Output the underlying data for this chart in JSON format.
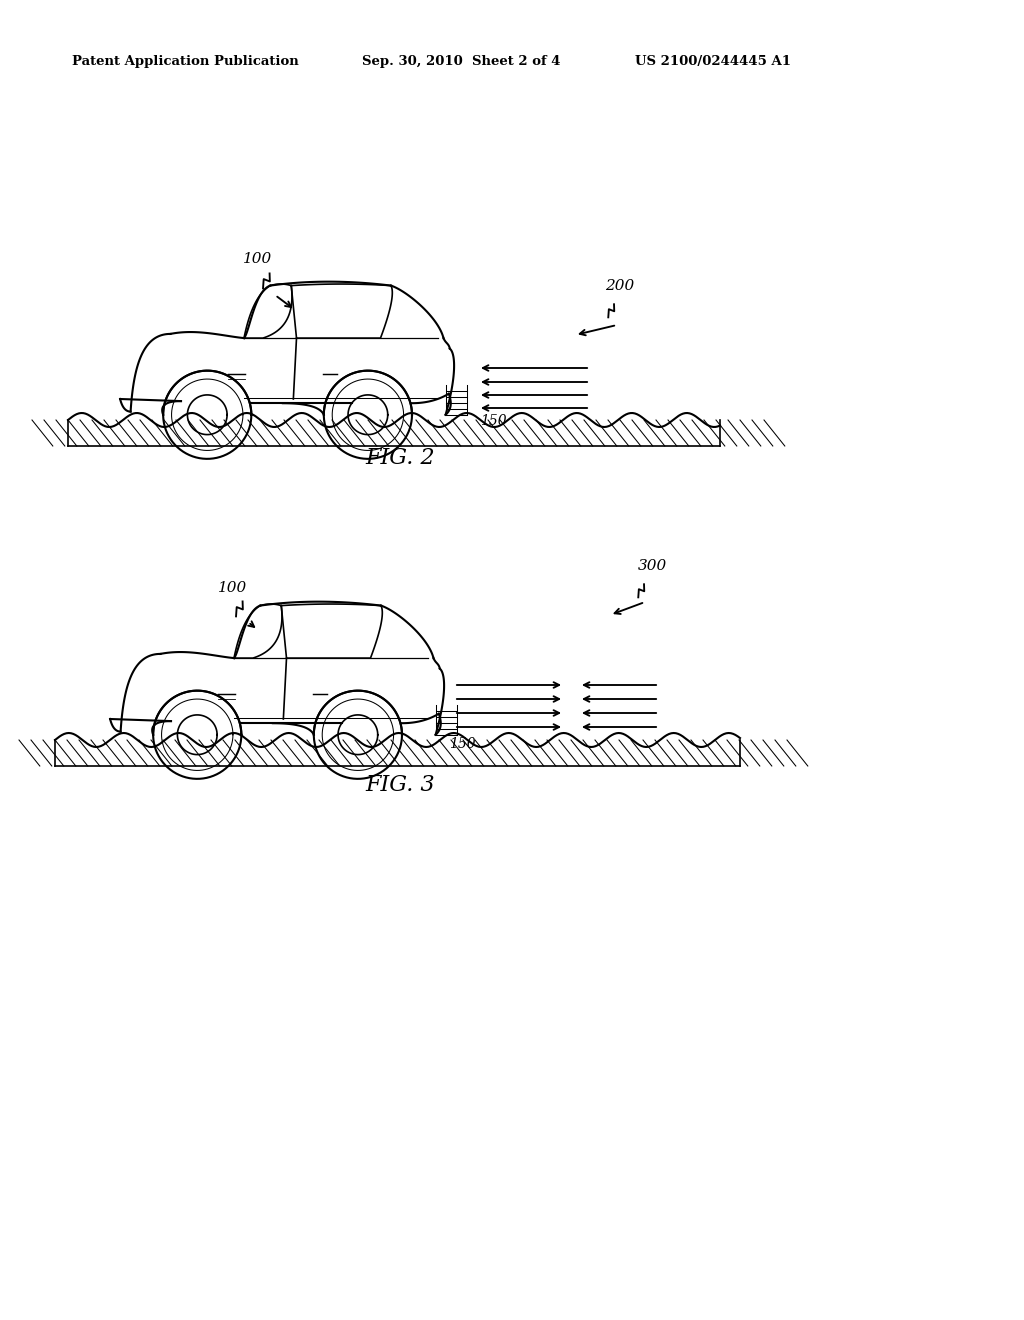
{
  "background_color": "#ffffff",
  "header_text": "Patent Application Publication",
  "header_date": "Sep. 30, 2010  Sheet 2 of 4",
  "header_patent": "US 2100/0244445 A1",
  "fig2_label": "FIG. 2",
  "fig3_label": "FIG. 3",
  "line_color": "#000000",
  "line_width": 1.5
}
